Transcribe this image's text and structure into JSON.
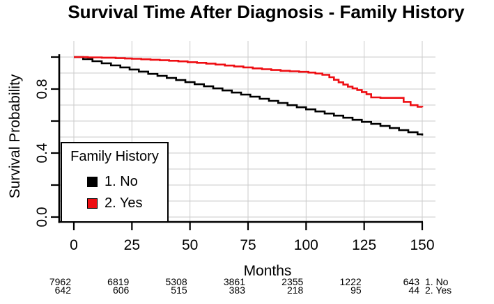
{
  "title": "Survival Time After Diagnosis - Family History",
  "axes": {
    "y_label": "Survival Probability",
    "x_label": "Months"
  },
  "legend": {
    "title": "Family History",
    "items": [
      {
        "label": "1. No",
        "color": "#000000"
      },
      {
        "label": "2. Yes",
        "color": "#ee0d12"
      }
    ]
  },
  "risk_table": {
    "rows": [
      {
        "label": "1. No",
        "counts": [
          "7962",
          "6819",
          "5308",
          "3861",
          "2355",
          "1222",
          "643"
        ]
      },
      {
        "label": "2. Yes",
        "counts": [
          "642",
          "606",
          "515",
          "383",
          "218",
          "95",
          "44"
        ]
      }
    ]
  },
  "chart_data": {
    "type": "line",
    "step": true,
    "title": "Survival Time After Diagnosis - Family History",
    "xlabel": "Months",
    "ylabel": "Survival Probability",
    "xlim": [
      0,
      156
    ],
    "ylim": [
      0,
      1.09
    ],
    "x_ticks": [
      0,
      25,
      50,
      75,
      100,
      125,
      150
    ],
    "y_ticks": [
      0.0,
      0.2,
      0.4,
      0.6,
      0.8,
      1.0
    ],
    "y_tick_labels_shown": [
      {
        "value": 0.0,
        "label": "0.0"
      },
      {
        "value": 0.4,
        "label": "0.4"
      },
      {
        "value": 0.8,
        "label": "0.8"
      }
    ],
    "grid": true,
    "grid_x_step": 25,
    "grid_y_step": 0.1,
    "grid_color": "#cbcbcb",
    "legend_position": "bottom-left",
    "series": [
      {
        "name": "1. No",
        "color": "#000000",
        "points": [
          [
            0,
            1.0
          ],
          [
            4,
            0.987
          ],
          [
            8,
            0.974
          ],
          [
            12,
            0.961
          ],
          [
            16,
            0.948
          ],
          [
            20,
            0.935
          ],
          [
            24,
            0.922
          ],
          [
            28,
            0.909
          ],
          [
            32,
            0.895
          ],
          [
            36,
            0.882
          ],
          [
            40,
            0.869
          ],
          [
            44,
            0.856
          ],
          [
            48,
            0.843
          ],
          [
            52,
            0.83
          ],
          [
            56,
            0.817
          ],
          [
            60,
            0.804
          ],
          [
            64,
            0.791
          ],
          [
            68,
            0.778
          ],
          [
            72,
            0.765
          ],
          [
            76,
            0.752
          ],
          [
            80,
            0.739
          ],
          [
            84,
            0.726
          ],
          [
            88,
            0.713
          ],
          [
            92,
            0.699
          ],
          [
            96,
            0.686
          ],
          [
            100,
            0.673
          ],
          [
            104,
            0.66
          ],
          [
            108,
            0.647
          ],
          [
            112,
            0.634
          ],
          [
            116,
            0.621
          ],
          [
            120,
            0.608
          ],
          [
            124,
            0.595
          ],
          [
            128,
            0.582
          ],
          [
            132,
            0.569
          ],
          [
            136,
            0.556
          ],
          [
            140,
            0.543
          ],
          [
            144,
            0.53
          ],
          [
            148,
            0.517
          ],
          [
            150,
            0.51
          ]
        ]
      },
      {
        "name": "2. Yes",
        "color": "#ee0d12",
        "points": [
          [
            0,
            1.0
          ],
          [
            6,
            0.998
          ],
          [
            12,
            0.996
          ],
          [
            18,
            0.993
          ],
          [
            22,
            0.991
          ],
          [
            25,
            0.989
          ],
          [
            29,
            0.986
          ],
          [
            33,
            0.983
          ],
          [
            37,
            0.98
          ],
          [
            41,
            0.977
          ],
          [
            45,
            0.973
          ],
          [
            49,
            0.968
          ],
          [
            53,
            0.964
          ],
          [
            57,
            0.959
          ],
          [
            61,
            0.953
          ],
          [
            65,
            0.947
          ],
          [
            69,
            0.941
          ],
          [
            73,
            0.935
          ],
          [
            77,
            0.929
          ],
          [
            81,
            0.924
          ],
          [
            85,
            0.919
          ],
          [
            89,
            0.914
          ],
          [
            93,
            0.911
          ],
          [
            97,
            0.908
          ],
          [
            101,
            0.903
          ],
          [
            104,
            0.897
          ],
          [
            107,
            0.889
          ],
          [
            110,
            0.874
          ],
          [
            112,
            0.858
          ],
          [
            114,
            0.842
          ],
          [
            116,
            0.828
          ],
          [
            118,
            0.815
          ],
          [
            120,
            0.804
          ],
          [
            122,
            0.794
          ],
          [
            124,
            0.781
          ],
          [
            126,
            0.768
          ],
          [
            128,
            0.748
          ],
          [
            132,
            0.745
          ],
          [
            142,
            0.72
          ],
          [
            145,
            0.699
          ],
          [
            148,
            0.689
          ],
          [
            150,
            0.686
          ]
        ]
      }
    ],
    "at_risk": {
      "x": [
        0,
        25,
        50,
        75,
        100,
        125,
        150
      ],
      "rows": [
        {
          "name": "1. No",
          "counts": [
            7962,
            6819,
            5308,
            3861,
            2355,
            1222,
            643
          ]
        },
        {
          "name": "2. Yes",
          "counts": [
            642,
            606,
            515,
            383,
            218,
            95,
            44
          ]
        }
      ]
    }
  }
}
